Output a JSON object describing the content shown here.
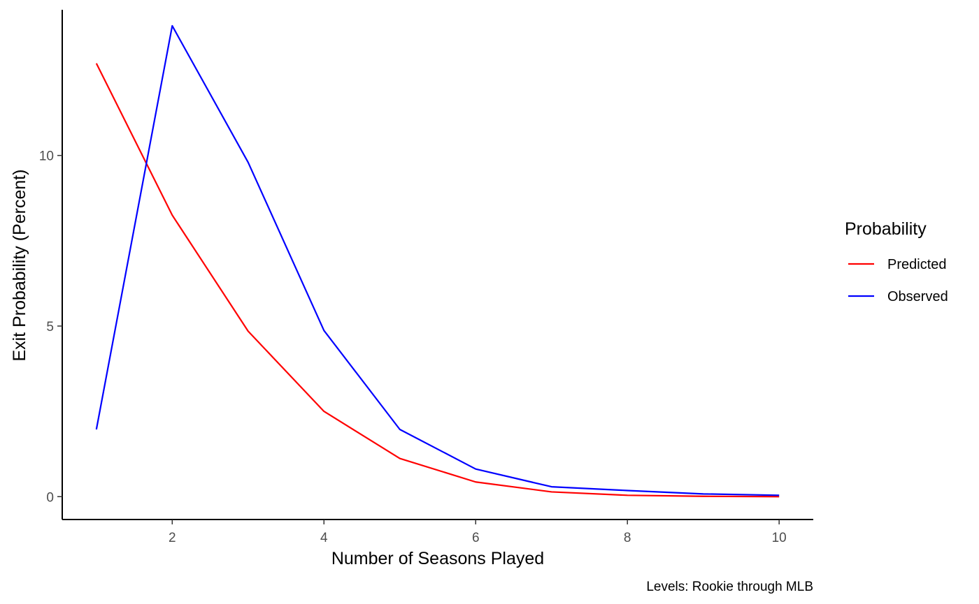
{
  "chart_data": {
    "type": "line",
    "xlabel": "Number of Seasons Played",
    "ylabel": "Exit Probability (Percent)",
    "caption": "Levels: Rookie through MLB",
    "x": [
      1,
      2,
      3,
      4,
      5,
      6,
      7,
      8,
      9,
      10
    ],
    "xlim": [
      0.55,
      10.45
    ],
    "ylim": [
      -0.67,
      14.27
    ],
    "xticks": [
      2,
      4,
      6,
      8,
      10
    ],
    "yticks": [
      0,
      5,
      10
    ],
    "grid": false,
    "legend": {
      "title": "Probability",
      "placement": "right"
    },
    "series": [
      {
        "name": "Predicted",
        "color": "#ff0000",
        "values": [
          12.7,
          8.25,
          4.85,
          2.5,
          1.12,
          0.43,
          0.14,
          0.04,
          0.01,
          0.0
        ]
      },
      {
        "name": "Observed",
        "color": "#0000ff",
        "values": [
          1.97,
          13.8,
          9.8,
          4.87,
          1.97,
          0.81,
          0.29,
          0.18,
          0.08,
          0.04
        ]
      }
    ]
  }
}
